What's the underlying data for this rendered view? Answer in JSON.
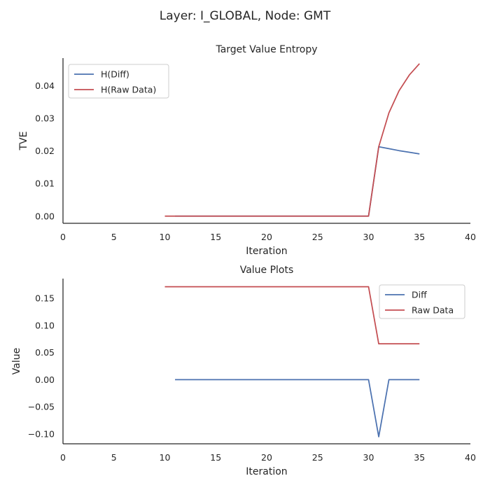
{
  "figure": {
    "title": "Layer: I_GLOBAL, Node: GMT"
  },
  "colors": {
    "diff": "#4c72b0",
    "raw": "#c44e52"
  },
  "chart_data": [
    {
      "type": "line",
      "title": "Target Value Entropy",
      "xlabel": "Iteration",
      "ylabel": "TVE",
      "xlim": [
        0,
        40
      ],
      "ylim": [
        -0.0022,
        0.0485
      ],
      "xticks": [
        0,
        5,
        10,
        15,
        20,
        25,
        30,
        35,
        40
      ],
      "xtick_labels": [
        "0",
        "5",
        "10",
        "15",
        "20",
        "25",
        "30",
        "35",
        "40"
      ],
      "yticks": [
        0.0,
        0.01,
        0.02,
        0.03,
        0.04
      ],
      "ytick_labels": [
        "0.00",
        "0.01",
        "0.02",
        "0.03",
        "0.04"
      ],
      "legend_loc": "upper-left",
      "grid": false,
      "series": [
        {
          "name": "H(Diff)",
          "color_key": "diff",
          "x": [
            11,
            12,
            13,
            14,
            15,
            16,
            17,
            18,
            19,
            20,
            21,
            22,
            23,
            24,
            25,
            26,
            27,
            28,
            29,
            30,
            31,
            32,
            33,
            34,
            35
          ],
          "y": [
            0,
            0,
            0,
            0,
            0,
            0,
            0,
            0,
            0,
            0,
            0,
            0,
            0,
            0,
            0,
            0,
            0,
            0,
            0,
            0,
            0.0213,
            0.0207,
            0.0201,
            0.0196,
            0.0191
          ]
        },
        {
          "name": "H(Raw Data)",
          "color_key": "raw",
          "x": [
            10,
            11,
            12,
            13,
            14,
            15,
            16,
            17,
            18,
            19,
            20,
            21,
            22,
            23,
            24,
            25,
            26,
            27,
            28,
            29,
            30,
            31,
            32,
            33,
            34,
            35
          ],
          "y": [
            0,
            0,
            0,
            0,
            0,
            0,
            0,
            0,
            0,
            0,
            0,
            0,
            0,
            0,
            0,
            0,
            0,
            0,
            0,
            0,
            0,
            0.0213,
            0.0317,
            0.0385,
            0.0433,
            0.0468
          ]
        }
      ]
    },
    {
      "type": "line",
      "title": "Value Plots",
      "xlabel": "Iteration",
      "ylabel": "Value",
      "xlim": [
        0,
        40
      ],
      "ylim": [
        -0.118,
        0.186
      ],
      "xticks": [
        0,
        5,
        10,
        15,
        20,
        25,
        30,
        35,
        40
      ],
      "xtick_labels": [
        "0",
        "5",
        "10",
        "15",
        "20",
        "25",
        "30",
        "35",
        "40"
      ],
      "yticks": [
        -0.1,
        -0.05,
        0.0,
        0.05,
        0.1,
        0.15
      ],
      "ytick_labels": [
        "−0.10",
        "−0.05",
        "0.00",
        "0.05",
        "0.10",
        "0.15"
      ],
      "legend_loc": "upper-right",
      "grid": false,
      "series": [
        {
          "name": "Diff",
          "color_key": "diff",
          "x": [
            11,
            12,
            13,
            14,
            15,
            16,
            17,
            18,
            19,
            20,
            21,
            22,
            23,
            24,
            25,
            26,
            27,
            28,
            29,
            30,
            31,
            32,
            33,
            34,
            35
          ],
          "y": [
            0,
            0,
            0,
            0,
            0,
            0,
            0,
            0,
            0,
            0,
            0,
            0,
            0,
            0,
            0,
            0,
            0,
            0,
            0,
            0,
            -0.105,
            0,
            0,
            0,
            0
          ]
        },
        {
          "name": "Raw Data",
          "color_key": "raw",
          "x": [
            10,
            11,
            12,
            13,
            14,
            15,
            16,
            17,
            18,
            19,
            20,
            21,
            22,
            23,
            24,
            25,
            26,
            27,
            28,
            29,
            30,
            31,
            32,
            33,
            34,
            35
          ],
          "y": [
            0.171,
            0.171,
            0.171,
            0.171,
            0.171,
            0.171,
            0.171,
            0.171,
            0.171,
            0.171,
            0.171,
            0.171,
            0.171,
            0.171,
            0.171,
            0.171,
            0.171,
            0.171,
            0.171,
            0.171,
            0.171,
            0.066,
            0.066,
            0.066,
            0.066,
            0.066
          ]
        }
      ]
    }
  ]
}
